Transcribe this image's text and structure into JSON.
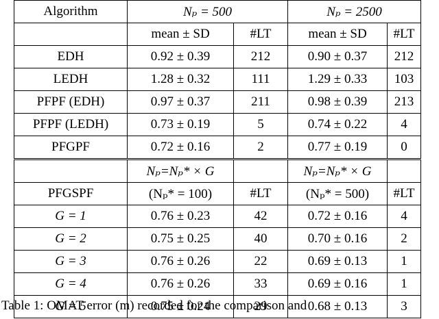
{
  "top": {
    "col0": "Algorithm",
    "groups": [
      "Nₚ = 500",
      "Nₚ = 2500"
    ],
    "sub": [
      "mean ± SD",
      "#LT",
      "mean ± SD",
      "#LT"
    ],
    "rows": [
      [
        "EDH",
        "0.92 ± 0.39",
        "212",
        "0.90 ± 0.37",
        "212"
      ],
      [
        "LEDH",
        "1.28 ± 0.32",
        "111",
        "1.29 ± 0.33",
        "103"
      ],
      [
        "PFPF (EDH)",
        "0.97 ± 0.37",
        "211",
        "0.98 ± 0.39",
        "213"
      ],
      [
        "PFPF (LEDH)",
        "0.73 ± 0.19",
        "5",
        "0.74 ± 0.22",
        "4"
      ],
      [
        "PFGPF",
        "0.72 ± 0.16",
        "2",
        "0.77 ± 0.19",
        "0"
      ]
    ]
  },
  "bottom": {
    "groups": [
      "Nₚ=Nₚ* × G",
      "Nₚ=Nₚ* × G"
    ],
    "sub": [
      "PFGSPF",
      "(Nₚ* = 100)",
      "#LT",
      "(Nₚ* = 500)",
      "#LT"
    ],
    "rows": [
      [
        "G = 1",
        "0.76 ± 0.23",
        "42",
        "0.72 ± 0.16",
        "4"
      ],
      [
        "G = 2",
        "0.75 ± 0.25",
        "40",
        "0.70 ± 0.16",
        "2"
      ],
      [
        "G = 3",
        "0.76 ± 0.26",
        "22",
        "0.69 ± 0.13",
        "1"
      ],
      [
        "G = 4",
        "0.76 ± 0.26",
        "33",
        "0.69 ± 0.16",
        "1"
      ],
      [
        "G = 5",
        "0.75 ± 0.24",
        "29",
        "0.68 ± 0.13",
        "3"
      ]
    ]
  },
  "caption": "Table 1:  OMAT error (m) recorded for the comparison and"
}
